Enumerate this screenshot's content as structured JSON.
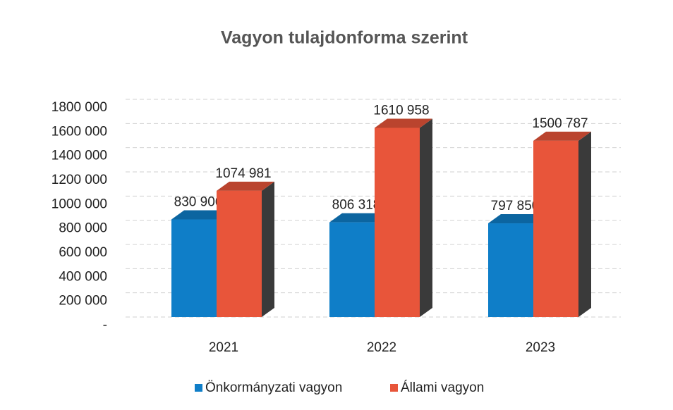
{
  "chart_data": {
    "type": "bar3d",
    "title": "Vagyon tulajdonforma szerint",
    "categories": [
      "2021",
      "2022",
      "2023"
    ],
    "series": [
      {
        "name": "Önkormányzati vagyon",
        "color": "#0f7ec8",
        "values": [
          830906,
          806318,
          797850
        ],
        "value_labels": [
          "830 906",
          "806 318",
          "797 850"
        ]
      },
      {
        "name": "Állami vagyon",
        "color": "#e8553a",
        "values": [
          1074981,
          1610958,
          1500787
        ],
        "value_labels": [
          "1074 981",
          "1610 958",
          "1500 787"
        ]
      }
    ],
    "ylim": [
      0,
      1800000
    ],
    "yticks": [
      {
        "value": 0,
        "label": "-"
      },
      {
        "value": 200000,
        "label": "200 000"
      },
      {
        "value": 400000,
        "label": "400 000"
      },
      {
        "value": 600000,
        "label": "600 000"
      },
      {
        "value": 800000,
        "label": "800 000"
      },
      {
        "value": 1000000,
        "label": "1000 000"
      },
      {
        "value": 1200000,
        "label": "1200 000"
      },
      {
        "value": 1400000,
        "label": "1400 000"
      },
      {
        "value": 1600000,
        "label": "1600 000"
      },
      {
        "value": 1800000,
        "label": "1800 000"
      }
    ],
    "grid": true,
    "legend": "bottom"
  }
}
